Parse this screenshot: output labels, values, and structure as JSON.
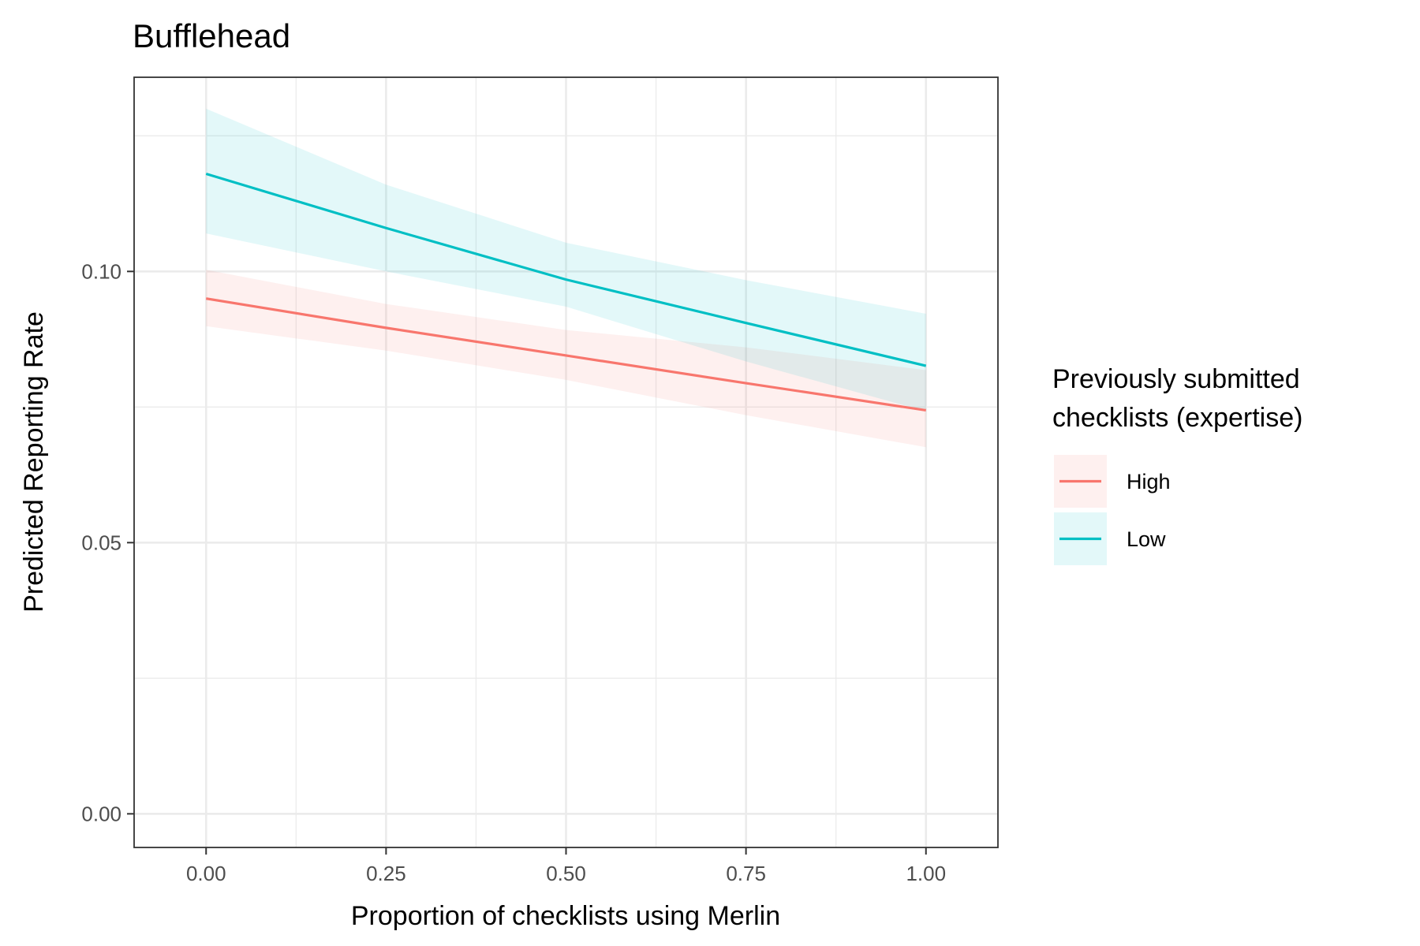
{
  "chart_data": {
    "type": "line",
    "title": "Bufflehead",
    "xlabel": "Proportion of checklists using Merlin",
    "ylabel": "Predicted Reporting Rate",
    "xlim": [
      -0.1,
      1.1
    ],
    "ylim": [
      -0.0062,
      0.1358
    ],
    "x_ticks": [
      0.0,
      0.25,
      0.5,
      0.75,
      1.0
    ],
    "x_tick_labels": [
      "0.00",
      "0.25",
      "0.50",
      "0.75",
      "1.00"
    ],
    "y_ticks": [
      0.0,
      0.05,
      0.1
    ],
    "y_tick_labels": [
      "0.00",
      "0.05",
      "0.10"
    ],
    "grid": true,
    "legend": {
      "title_lines": [
        "Previously submitted",
        "checklists (expertise)"
      ],
      "position": "right"
    },
    "x": [
      0.0,
      0.25,
      0.5,
      0.75,
      1.0
    ],
    "series": [
      {
        "name": "High",
        "color": "#F8766D",
        "values": [
          0.095,
          0.0896,
          0.0845,
          0.0794,
          0.0744
        ],
        "lower": [
          0.0899,
          0.0854,
          0.08,
          0.0735,
          0.0676
        ],
        "upper": [
          0.1003,
          0.094,
          0.0892,
          0.086,
          0.0818
        ]
      },
      {
        "name": "Low",
        "color": "#00BFC4",
        "values": [
          0.118,
          0.108,
          0.0985,
          0.0905,
          0.0826
        ],
        "lower": [
          0.107,
          0.1,
          0.0935,
          0.0834,
          0.0742
        ],
        "upper": [
          0.13,
          0.116,
          0.1053,
          0.0984,
          0.0922
        ]
      }
    ]
  }
}
